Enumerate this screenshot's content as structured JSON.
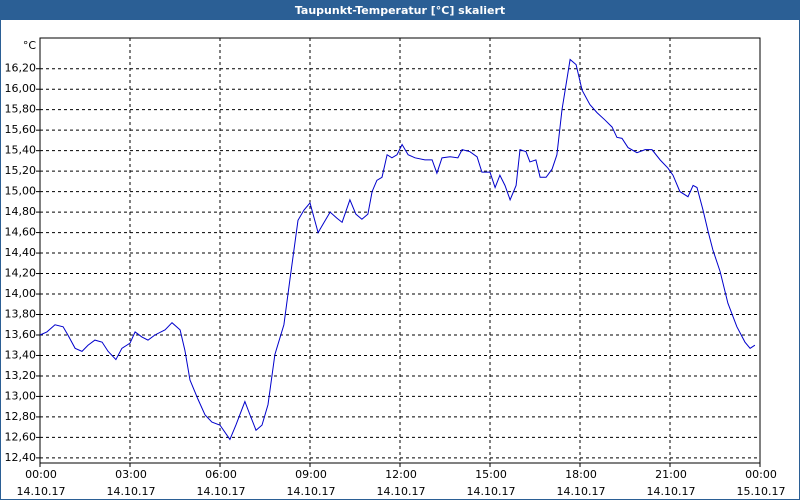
{
  "chart_data": {
    "type": "line",
    "title": "Taupunkt-Temperatur [°C] skaliert",
    "y_label": "°C",
    "color": "#0000cc",
    "grid": true,
    "xlim": [
      0,
      24
    ],
    "xticks": [
      {
        "value": 0,
        "label": "00:00\n14.10.17"
      },
      {
        "value": 3,
        "label": "03:00\n14.10.17"
      },
      {
        "value": 6,
        "label": "06:00\n14.10.17"
      },
      {
        "value": 9,
        "label": "09:00\n14.10.17"
      },
      {
        "value": 12,
        "label": "12:00\n14.10.17"
      },
      {
        "value": 15,
        "label": "15:00\n14.10.17"
      },
      {
        "value": 18,
        "label": "18:00\n14.10.17"
      },
      {
        "value": 21,
        "label": "21:00\n14.10.17"
      },
      {
        "value": 24,
        "label": "00:00\n15.10.17"
      }
    ],
    "ylim": [
      12.35,
      16.5
    ],
    "yticks": [
      {
        "value": 12.4,
        "label": "12,40"
      },
      {
        "value": 12.6,
        "label": "12,60"
      },
      {
        "value": 12.8,
        "label": "12,80"
      },
      {
        "value": 13.0,
        "label": "13,00"
      },
      {
        "value": 13.2,
        "label": "13,20"
      },
      {
        "value": 13.4,
        "label": "13,40"
      },
      {
        "value": 13.6,
        "label": "13,60"
      },
      {
        "value": 13.8,
        "label": "13,80"
      },
      {
        "value": 14.0,
        "label": "14,00"
      },
      {
        "value": 14.2,
        "label": "14,20"
      },
      {
        "value": 14.4,
        "label": "14,40"
      },
      {
        "value": 14.6,
        "label": "14,60"
      },
      {
        "value": 14.8,
        "label": "14,80"
      },
      {
        "value": 15.0,
        "label": "15,00"
      },
      {
        "value": 15.2,
        "label": "15,20"
      },
      {
        "value": 15.4,
        "label": "15,40"
      },
      {
        "value": 15.6,
        "label": "15,60"
      },
      {
        "value": 15.8,
        "label": "15,80"
      },
      {
        "value": 16.0,
        "label": "16,00"
      },
      {
        "value": 16.2,
        "label": "16,20"
      }
    ],
    "x": [
      0,
      0.23,
      0.5,
      0.77,
      0.93,
      1.17,
      1.4,
      1.6,
      1.83,
      2.07,
      2.27,
      2.53,
      2.73,
      3,
      3.17,
      3.4,
      3.6,
      3.83,
      4.17,
      4.4,
      4.67,
      4.83,
      5,
      5.27,
      5.5,
      5.73,
      6,
      6.33,
      6.53,
      6.83,
      7,
      7.2,
      7.4,
      7.6,
      7.83,
      8.13,
      8.33,
      8.6,
      8.8,
      9,
      9.27,
      9.43,
      9.67,
      9.9,
      10.07,
      10.33,
      10.53,
      10.73,
      10.93,
      11.07,
      11.23,
      11.4,
      11.57,
      11.73,
      11.9,
      12.07,
      12.27,
      12.5,
      12.83,
      13.07,
      13.23,
      13.4,
      13.67,
      13.93,
      14.07,
      14.33,
      14.57,
      14.73,
      15,
      15.17,
      15.33,
      15.5,
      15.67,
      15.87,
      16,
      16.2,
      16.33,
      16.53,
      16.67,
      16.87,
      17.07,
      17.23,
      17.4,
      17.67,
      17.87,
      18.07,
      18.33,
      18.57,
      18.83,
      19.07,
      19.23,
      19.4,
      19.6,
      19.9,
      20.17,
      20.4,
      20.67,
      20.93,
      21.1,
      21.33,
      21.6,
      21.77,
      21.9,
      22.1,
      22.27,
      22.43,
      22.67,
      22.93,
      23.23,
      23.5,
      23.67,
      23.83
    ],
    "values": [
      13.6,
      13.63,
      13.7,
      13.68,
      13.6,
      13.47,
      13.44,
      13.5,
      13.55,
      13.53,
      13.44,
      13.36,
      13.47,
      13.52,
      13.63,
      13.58,
      13.55,
      13.6,
      13.65,
      13.72,
      13.65,
      13.45,
      13.16,
      12.97,
      12.82,
      12.75,
      12.72,
      12.58,
      12.72,
      12.95,
      12.82,
      12.67,
      12.72,
      12.92,
      13.41,
      13.7,
      14.14,
      14.72,
      14.82,
      14.89,
      14.6,
      14.68,
      14.8,
      14.74,
      14.7,
      14.92,
      14.78,
      14.73,
      14.78,
      15.0,
      15.11,
      15.14,
      15.36,
      15.33,
      15.36,
      15.46,
      15.36,
      15.33,
      15.31,
      15.31,
      15.18,
      15.33,
      15.34,
      15.33,
      15.41,
      15.39,
      15.34,
      15.19,
      15.19,
      15.04,
      15.16,
      15.06,
      14.92,
      15.06,
      15.41,
      15.39,
      15.29,
      15.31,
      15.14,
      15.14,
      15.22,
      15.36,
      15.8,
      16.29,
      16.24,
      15.99,
      15.85,
      15.77,
      15.7,
      15.63,
      15.53,
      15.52,
      15.43,
      15.38,
      15.41,
      15.41,
      15.31,
      15.23,
      15.16,
      15.0,
      14.95,
      15.06,
      15.04,
      14.82,
      14.61,
      14.43,
      14.22,
      13.91,
      13.68,
      13.53,
      13.47,
      13.5
    ]
  }
}
